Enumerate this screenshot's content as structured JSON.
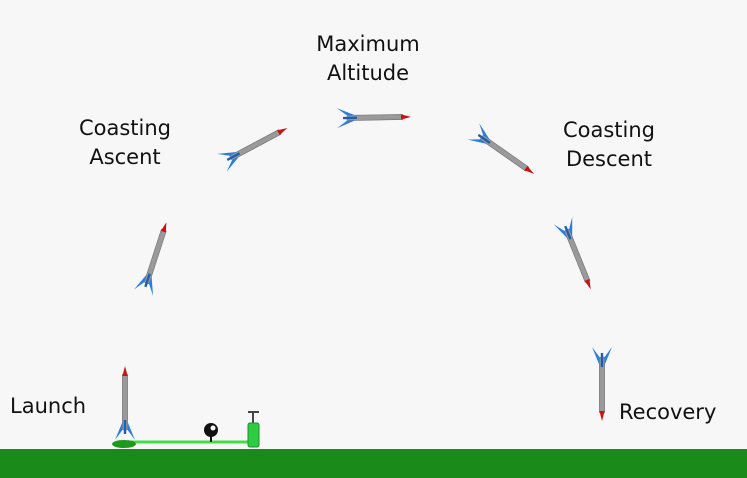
{
  "labels": {
    "max_altitude": [
      "Maximum",
      "Altitude"
    ],
    "coasting_ascent": [
      "Coasting",
      "Ascent"
    ],
    "coasting_descent": [
      "Coasting",
      "Descent"
    ],
    "launch": "Launch",
    "recovery": "Recovery"
  },
  "colors": {
    "background": "#f7f7f7",
    "ground": "#1a8a1a",
    "rocket_body": "#9a9a9a",
    "rocket_nose": "#d01010",
    "rocket_fins": "#2a7de0",
    "launch_line": "#44dd44",
    "pump": "#2ecc40",
    "gauge": "#111111"
  }
}
